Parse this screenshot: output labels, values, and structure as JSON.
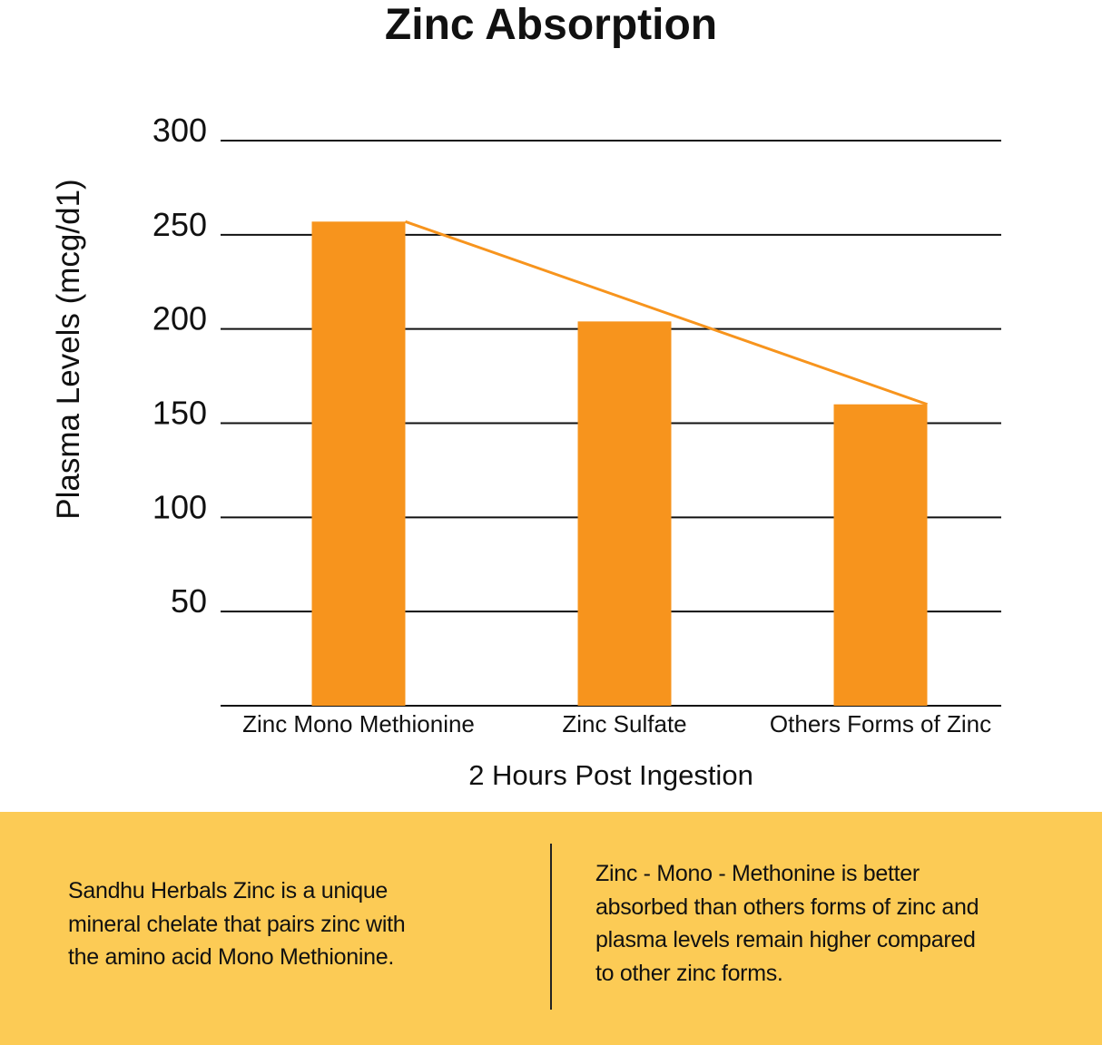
{
  "chart_data": {
    "type": "bar",
    "title": "Zinc Absorption",
    "xlabel": "2 Hours Post Ingestion",
    "ylabel": "Plasma Levels (mcg/d1)",
    "categories": [
      "Zinc Mono Methionine",
      "Zinc Sulfate",
      "Others Forms of Zinc"
    ],
    "values": [
      257,
      204,
      160
    ],
    "ylim": [
      0,
      300
    ],
    "yticks": [
      50,
      100,
      150,
      200,
      250,
      300
    ],
    "grid": true,
    "annotations": [
      "trend line connecting top of first bar to top of last bar"
    ],
    "colors": {
      "bar": "#F7941D",
      "trend_line": "#F7941D",
      "grid": "#111111"
    }
  },
  "panel": {
    "background": "#FCCB55",
    "left_text": [
      "Sandhu Herbals Zinc is a unique",
      "mineral chelate that pairs zinc with",
      "the amino acid Mono Methionine."
    ],
    "right_text": [
      "Zinc - Mono - Methonine is better",
      "absorbed than others forms of zinc and",
      "plasma levels remain higher compared",
      "to other zinc forms."
    ]
  }
}
